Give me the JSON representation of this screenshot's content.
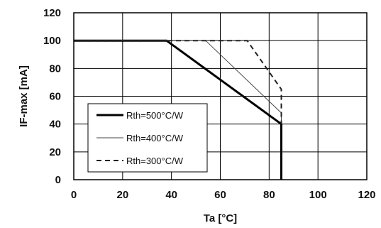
{
  "chart_data": {
    "type": "line",
    "title": "",
    "xlabel": "Ta [°C]",
    "ylabel": "IF-max [mA]",
    "xlim": [
      0,
      120
    ],
    "ylim": [
      0,
      120
    ],
    "xticks": [
      0,
      20,
      40,
      60,
      80,
      100,
      120
    ],
    "yticks": [
      0,
      20,
      40,
      60,
      80,
      100,
      120
    ],
    "grid": true,
    "legend_position": "bottom-left",
    "series": [
      {
        "name": "Rth=500°C/W",
        "style": "solid-thick",
        "color": "#000000",
        "x": [
          0,
          38,
          85,
          85
        ],
        "y": [
          100,
          100,
          40,
          0
        ]
      },
      {
        "name": "Rth=400°C/W",
        "style": "solid-thin",
        "color": "#444444",
        "x": [
          0,
          54,
          85,
          85
        ],
        "y": [
          100,
          100,
          48,
          40
        ]
      },
      {
        "name": "Rth=300°C/W",
        "style": "dashed",
        "color": "#222222",
        "x": [
          0,
          71,
          85,
          85
        ],
        "y": [
          100,
          100,
          65,
          40
        ]
      }
    ]
  }
}
